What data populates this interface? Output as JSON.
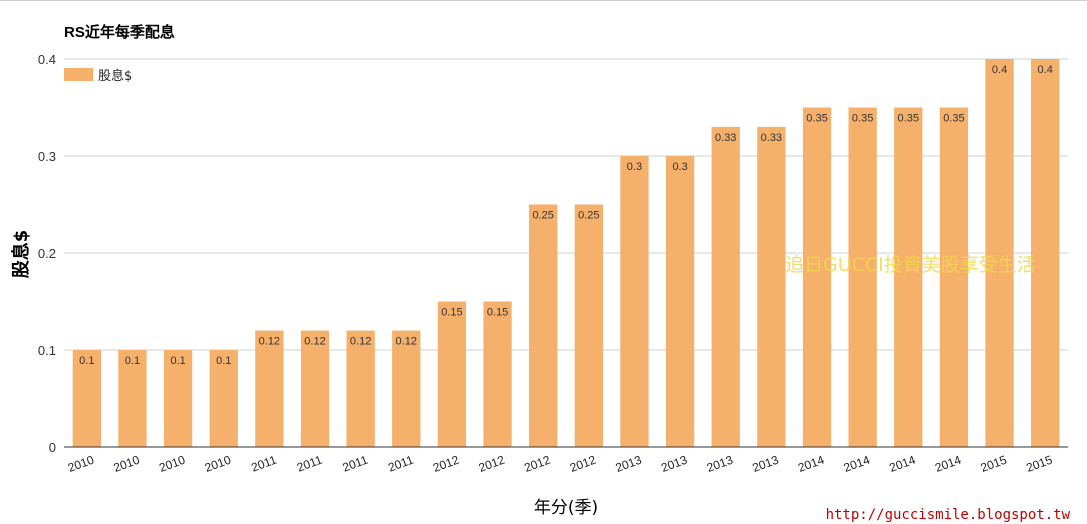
{
  "chart_data": {
    "type": "bar",
    "title": "RS近年每季配息",
    "xlabel": "年分(季)",
    "ylabel": "股息$",
    "ylim": [
      0,
      0.4
    ],
    "yticks": [
      "0",
      "0.1",
      "0.2",
      "0.3",
      "0.4"
    ],
    "grid": true,
    "legend_position": "top-left",
    "categories": [
      "2010",
      "2010",
      "2010",
      "2010",
      "2011",
      "2011",
      "2011",
      "2011",
      "2012",
      "2012",
      "2012",
      "2012",
      "2013",
      "2013",
      "2013",
      "2013",
      "2014",
      "2014",
      "2014",
      "2014",
      "2015",
      "2015"
    ],
    "series": [
      {
        "name": "股息$",
        "color": "#f5b06b",
        "values": [
          0.1,
          0.1,
          0.1,
          0.1,
          0.12,
          0.12,
          0.12,
          0.12,
          0.15,
          0.15,
          0.25,
          0.25,
          0.3,
          0.3,
          0.33,
          0.33,
          0.35,
          0.35,
          0.35,
          0.35,
          0.4,
          0.4
        ],
        "labels": [
          "0.1",
          "0.1",
          "0.1",
          "0.1",
          "0.12",
          "0.12",
          "0.12",
          "0.12",
          "0.15",
          "0.15",
          "0.25",
          "0.25",
          "0.3",
          "0.3",
          "0.33",
          "0.33",
          "0.35",
          "0.35",
          "0.35",
          "0.35",
          "0.4",
          "0.4"
        ]
      }
    ]
  },
  "watermark": "追日GUCCI投資美股享受生活",
  "source_url": "http://guccismile.blogspot.tw"
}
